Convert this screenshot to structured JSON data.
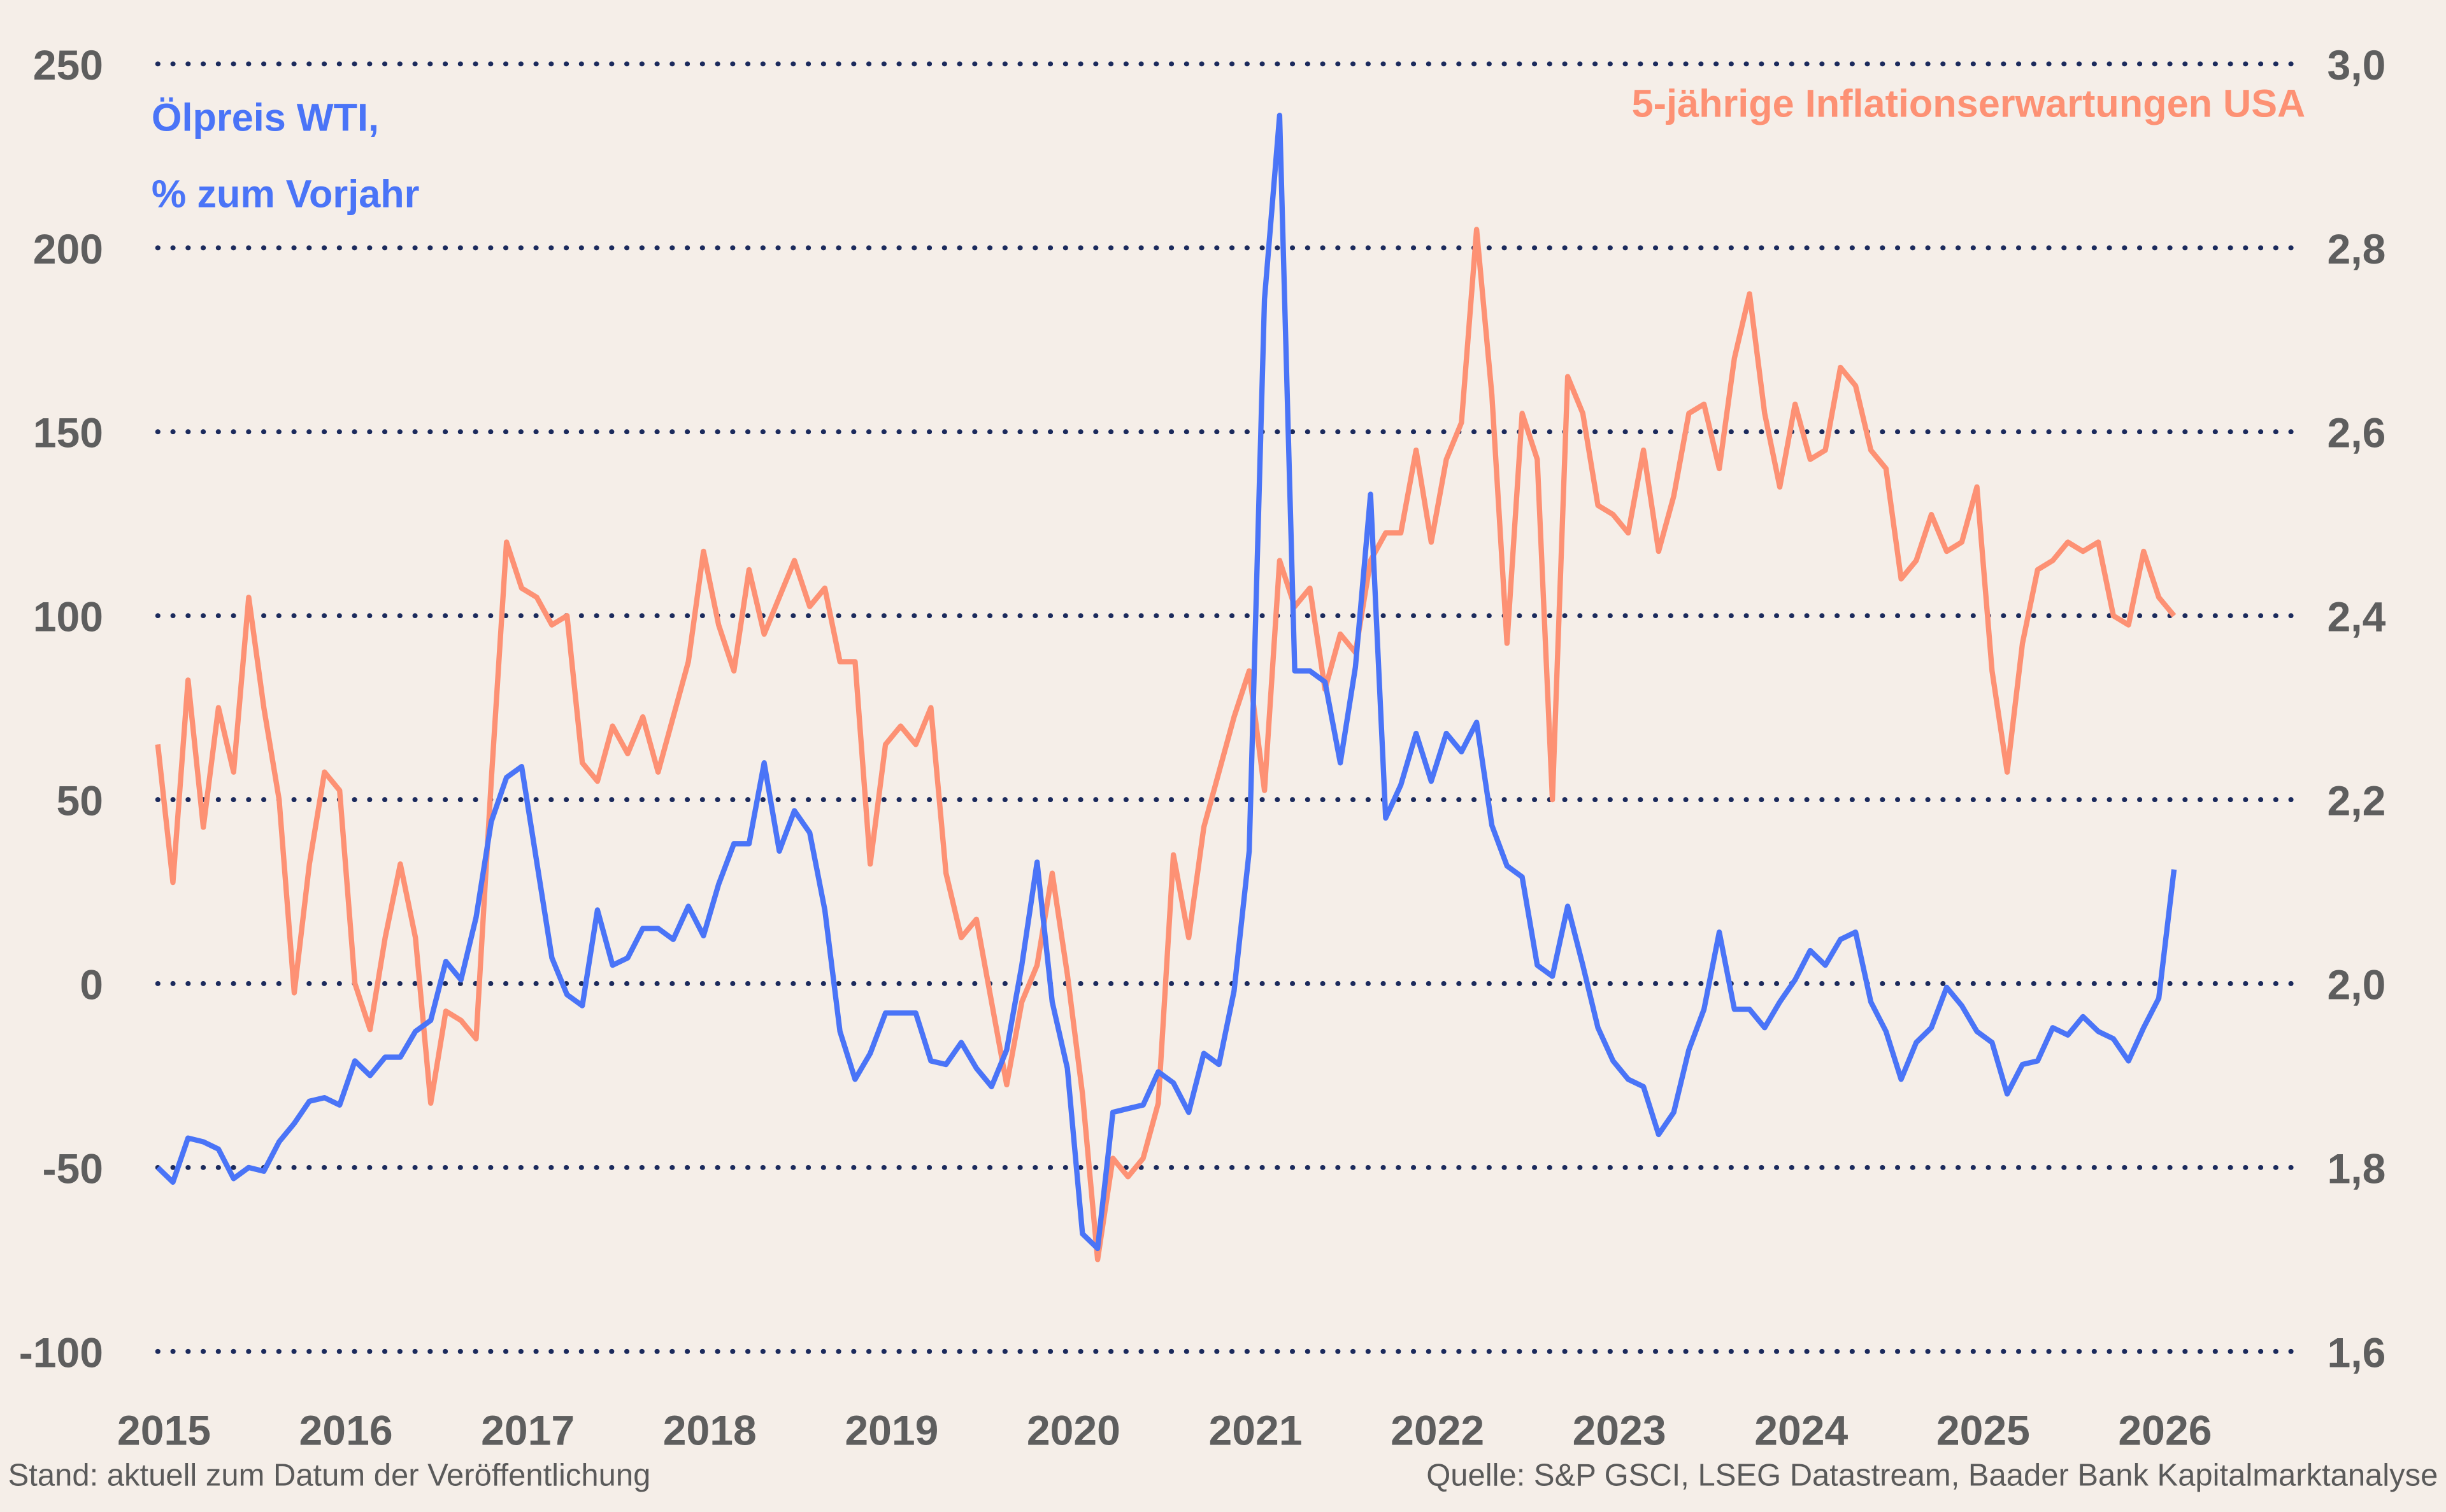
{
  "chart_data": {
    "type": "line",
    "left_axis": {
      "label_lines": [
        "Ölpreis WTI,",
        "% zum Vorjahr"
      ],
      "ylim": [
        -100,
        250
      ],
      "ticks": [
        "250",
        "200",
        "150",
        "100",
        "50",
        "0",
        "-50",
        "-100"
      ],
      "tick_values": [
        250,
        200,
        150,
        100,
        50,
        0,
        -50,
        -100
      ]
    },
    "right_axis": {
      "label": "5-jährige Inflationserwartungen USA",
      "ylim": [
        1.6,
        3.0
      ],
      "ticks": [
        "3,0",
        "2,8",
        "2,6",
        "2,4",
        "2,2",
        "2,0",
        "1,8",
        "1,6"
      ]
    },
    "x_axis": {
      "start": "2015-01",
      "frequency": "monthly",
      "tick_labels": [
        "2015",
        "2016",
        "2017",
        "2018",
        "2019",
        "2020",
        "2021",
        "2022",
        "2023",
        "2024",
        "2025",
        "2026"
      ]
    },
    "grid": "horizontal dotted",
    "series": [
      {
        "name": "Ölpreis WTI, % zum Vorjahr",
        "axis": "left",
        "color": "#4a74f7",
        "values": [
          -50,
          -54,
          -42,
          -43,
          -45,
          -53,
          -50,
          -51,
          -43,
          -38,
          -32,
          -31,
          -33,
          -21,
          -25,
          -20,
          -20,
          -13,
          -10,
          6,
          1,
          18,
          44,
          56,
          59,
          33,
          7,
          -3,
          -6,
          20,
          5,
          7,
          15,
          15,
          12,
          21,
          13,
          27,
          38,
          38,
          60,
          36,
          47,
          41,
          20,
          -13,
          -26,
          -19,
          -8,
          -8,
          -8,
          -21,
          -22,
          -16,
          -23,
          -28,
          -18,
          5,
          33,
          -5,
          -23,
          -68,
          -72,
          -35,
          -34,
          -33,
          -24,
          -27,
          -35,
          -19,
          -22,
          -2,
          36,
          186,
          236,
          85,
          85,
          82,
          60,
          86,
          133,
          45,
          54,
          68,
          55,
          68,
          63,
          71,
          43,
          32,
          29,
          5,
          2,
          21,
          5,
          -12,
          -21,
          -26,
          -28,
          -41,
          -35,
          -18,
          -7,
          14,
          -7,
          -7,
          -12,
          -5,
          1,
          9,
          5,
          12,
          14,
          -5,
          -13,
          -26,
          -16,
          -12,
          -1,
          -6,
          -13,
          -16,
          -30,
          -22,
          -21,
          -12,
          -14,
          -9,
          -13,
          -15,
          -21,
          -12,
          -4,
          31
        ]
      },
      {
        "name": "5-jährige Inflationserwartungen USA",
        "axis": "right",
        "color": "#fd9174",
        "values": [
          2.26,
          2.11,
          2.33,
          2.17,
          2.3,
          2.23,
          2.42,
          2.3,
          2.2,
          1.99,
          2.13,
          2.23,
          2.21,
          2.0,
          1.95,
          2.05,
          2.13,
          2.05,
          1.87,
          1.97,
          1.96,
          1.94,
          2.22,
          2.48,
          2.43,
          2.42,
          2.39,
          2.4,
          2.24,
          2.22,
          2.28,
          2.25,
          2.29,
          2.23,
          2.29,
          2.35,
          2.47,
          2.39,
          2.34,
          2.45,
          2.38,
          2.42,
          2.46,
          2.41,
          2.43,
          2.35,
          2.35,
          2.13,
          2.26,
          2.28,
          2.26,
          2.3,
          2.12,
          2.05,
          2.07,
          1.98,
          1.89,
          1.98,
          2.02,
          2.12,
          2.01,
          1.88,
          1.7,
          1.81,
          1.79,
          1.81,
          1.87,
          2.14,
          2.05,
          2.17,
          2.23,
          2.29,
          2.34,
          2.21,
          2.46,
          2.41,
          2.43,
          2.32,
          2.38,
          2.36,
          2.46,
          2.49,
          2.49,
          2.58,
          2.48,
          2.57,
          2.61,
          2.82,
          2.64,
          2.37,
          2.62,
          2.57,
          2.2,
          2.66,
          2.62,
          2.52,
          2.51,
          2.49,
          2.58,
          2.47,
          2.53,
          2.62,
          2.63,
          2.56,
          2.68,
          2.75,
          2.62,
          2.54,
          2.63,
          2.57,
          2.58,
          2.67,
          2.65,
          2.58,
          2.56,
          2.44,
          2.46,
          2.51,
          2.47,
          2.48,
          2.54,
          2.34,
          2.23,
          2.37,
          2.45,
          2.46,
          2.48,
          2.47,
          2.48,
          2.4,
          2.39,
          2.47,
          2.42,
          2.4
        ]
      }
    ]
  },
  "footer": {
    "left": "Stand: aktuell zum Datum der Veröffentlichung",
    "right": "Quelle: S&P GSCI, LSEG Datastream, Baader Bank Kapitalmarktanalyse"
  }
}
